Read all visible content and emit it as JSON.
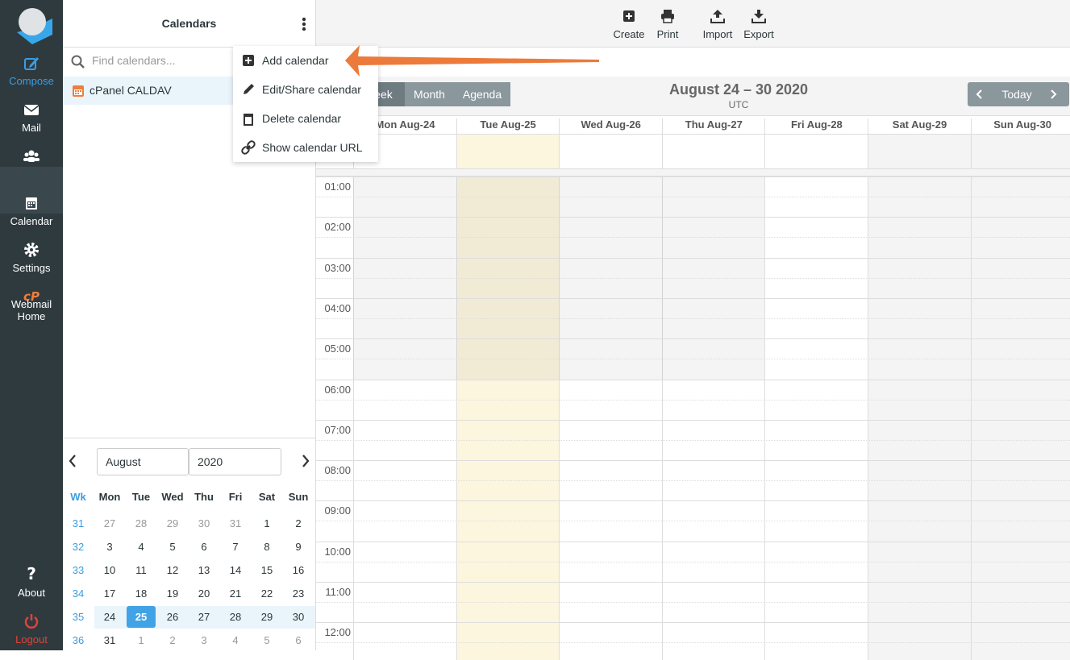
{
  "nav": {
    "items": [
      "Compose",
      "Mail",
      "Contacts",
      "Calendar",
      "Settings",
      "Webmail Home"
    ],
    "bottom": [
      "About",
      "Logout"
    ]
  },
  "sidebar": {
    "title": "Calendars",
    "search_placeholder": "Find calendars...",
    "calendars": [
      "cPanel CALDAV"
    ]
  },
  "menu": [
    "Add calendar",
    "Edit/Share calendar",
    "Delete calendar",
    "Show calendar URL"
  ],
  "toolbar": [
    "Create",
    "Print",
    "Import",
    "Export"
  ],
  "views": [
    "Week",
    "Month",
    "Agenda"
  ],
  "header": {
    "title": "August 24 – 30 2020",
    "timezone": "UTC",
    "today": "Today"
  },
  "days": [
    "Mon Aug-24",
    "Tue Aug-25",
    "Wed Aug-26",
    "Thu Aug-27",
    "Fri Aug-28",
    "Sat Aug-29",
    "Sun Aug-30"
  ],
  "hours": [
    "01:00",
    "02:00",
    "03:00",
    "04:00",
    "05:00",
    "06:00",
    "07:00",
    "08:00",
    "09:00",
    "10:00",
    "11:00",
    "12:00"
  ],
  "minical": {
    "month": "August",
    "year": "2020",
    "headers": [
      "Wk",
      "Mon",
      "Tue",
      "Wed",
      "Thu",
      "Fri",
      "Sat",
      "Sun"
    ],
    "weeks": [
      [
        31,
        27,
        28,
        29,
        30,
        31,
        1,
        2
      ],
      [
        32,
        3,
        4,
        5,
        6,
        7,
        8,
        9
      ],
      [
        33,
        10,
        11,
        12,
        13,
        14,
        15,
        16
      ],
      [
        34,
        17,
        18,
        19,
        20,
        21,
        22,
        23
      ],
      [
        35,
        24,
        25,
        26,
        27,
        28,
        29,
        30
      ],
      [
        36,
        31,
        1,
        2,
        3,
        4,
        5,
        6
      ]
    ],
    "selected_day": 25
  }
}
